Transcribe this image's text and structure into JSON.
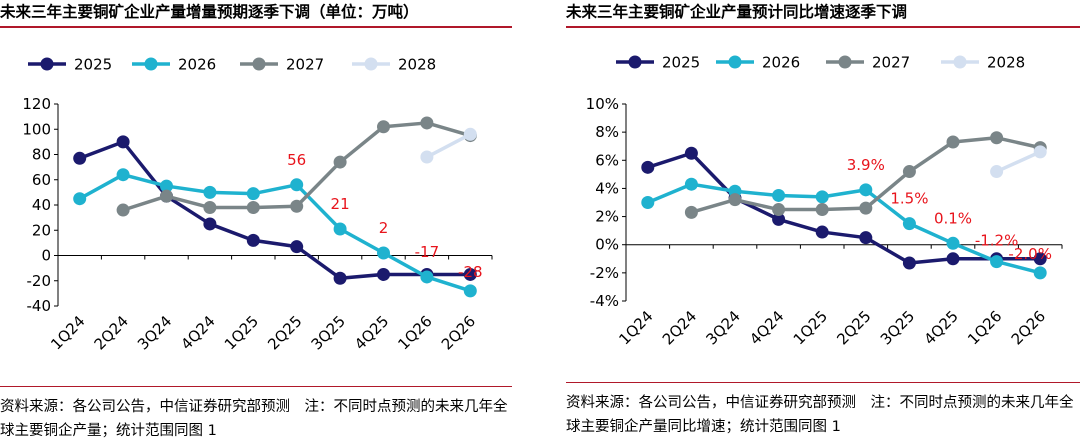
{
  "colors": {
    "s2025": "#1b1a6d",
    "s2026": "#1fb2cf",
    "s2027": "#7a8588",
    "s2028": "#d3dff0",
    "annotation": "#e8141c",
    "rule": "#b0182a"
  },
  "left": {
    "title": "未来三年主要铜矿企业产量增量预期逐季下调（单位：万吨）",
    "source": "资料来源：各公司公告，中信证券研究部预测　注：不同时点预测的未来几年全球主要铜企产量；统计范围同图 1"
  },
  "right": {
    "title": "未来三年主要铜矿企业产量预计同比增速逐季下调",
    "source": "资料来源：各公司公告，中信证券研究部预测　注：不同时点预测的未来几年全球主要铜企产量同比增速；统计范围同图 1"
  },
  "chart_data": [
    {
      "type": "line",
      "categories": [
        "1Q24",
        "2Q24",
        "3Q24",
        "4Q24",
        "1Q25",
        "2Q25",
        "3Q25",
        "4Q25",
        "1Q26",
        "2Q26"
      ],
      "ylim": [
        -40,
        120
      ],
      "yticks": [
        -40,
        -20,
        0,
        20,
        40,
        60,
        80,
        100,
        120
      ],
      "yticklabels": [
        "-40",
        "-20",
        "0",
        "20",
        "40",
        "60",
        "80",
        "100",
        "120"
      ],
      "grid": false,
      "legend": "top",
      "series": [
        {
          "name": "2025",
          "color": "#1b1a6d",
          "values": [
            77,
            90,
            47,
            25,
            12,
            7,
            -18,
            -15,
            -15,
            -15
          ]
        },
        {
          "name": "2026",
          "color": "#1fb2cf",
          "values": [
            45,
            64,
            55,
            50,
            49,
            56,
            21,
            2,
            -17,
            -28
          ]
        },
        {
          "name": "2027",
          "color": "#7a8588",
          "values": [
            null,
            36,
            47,
            38,
            38,
            39,
            74,
            102,
            105,
            95
          ]
        },
        {
          "name": "2028",
          "color": "#d3dff0",
          "values": [
            null,
            null,
            null,
            null,
            null,
            null,
            null,
            null,
            78,
            96
          ]
        }
      ],
      "annotations": [
        {
          "category": "2Q25",
          "value": 56,
          "text": "56"
        },
        {
          "category": "3Q25",
          "value": 21,
          "text": "21"
        },
        {
          "category": "4Q25",
          "value": 2,
          "text": "2"
        },
        {
          "category": "1Q26",
          "value": -17,
          "text": "-17"
        },
        {
          "category": "2Q26",
          "value": -28,
          "text": "-28"
        }
      ]
    },
    {
      "type": "line",
      "categories": [
        "1Q24",
        "2Q24",
        "3Q24",
        "4Q24",
        "1Q25",
        "2Q25",
        "3Q25",
        "4Q25",
        "1Q26",
        "2Q26"
      ],
      "ylim": [
        -4,
        10
      ],
      "yticks": [
        -4,
        -2,
        0,
        2,
        4,
        6,
        8,
        10
      ],
      "yticklabels": [
        "-4%",
        "-2%",
        "0%",
        "2%",
        "4%",
        "6%",
        "8%",
        "10%"
      ],
      "grid": false,
      "legend": "top",
      "series": [
        {
          "name": "2025",
          "color": "#1b1a6d",
          "values": [
            5.5,
            6.5,
            3.3,
            1.8,
            0.9,
            0.5,
            -1.3,
            -1.0,
            -1.0,
            -1.0
          ]
        },
        {
          "name": "2026",
          "color": "#1fb2cf",
          "values": [
            3.0,
            4.3,
            3.8,
            3.5,
            3.4,
            3.9,
            1.5,
            0.1,
            -1.2,
            -2.0
          ]
        },
        {
          "name": "2027",
          "color": "#7a8588",
          "values": [
            null,
            2.3,
            3.2,
            2.5,
            2.5,
            2.6,
            5.2,
            7.3,
            7.6,
            6.9
          ]
        },
        {
          "name": "2028",
          "color": "#d3dff0",
          "values": [
            null,
            null,
            null,
            null,
            null,
            null,
            null,
            null,
            5.2,
            6.6
          ]
        }
      ],
      "annotations": [
        {
          "category": "2Q25",
          "value": 3.9,
          "text": "3.9%"
        },
        {
          "category": "3Q25",
          "value": 1.5,
          "text": "1.5%"
        },
        {
          "category": "4Q25",
          "value": 0.1,
          "text": "0.1%"
        },
        {
          "category": "1Q26",
          "value": -1.2,
          "text": "-1.2%"
        },
        {
          "category": "2Q26",
          "value": -2.0,
          "text": "-2.0%"
        }
      ]
    }
  ]
}
